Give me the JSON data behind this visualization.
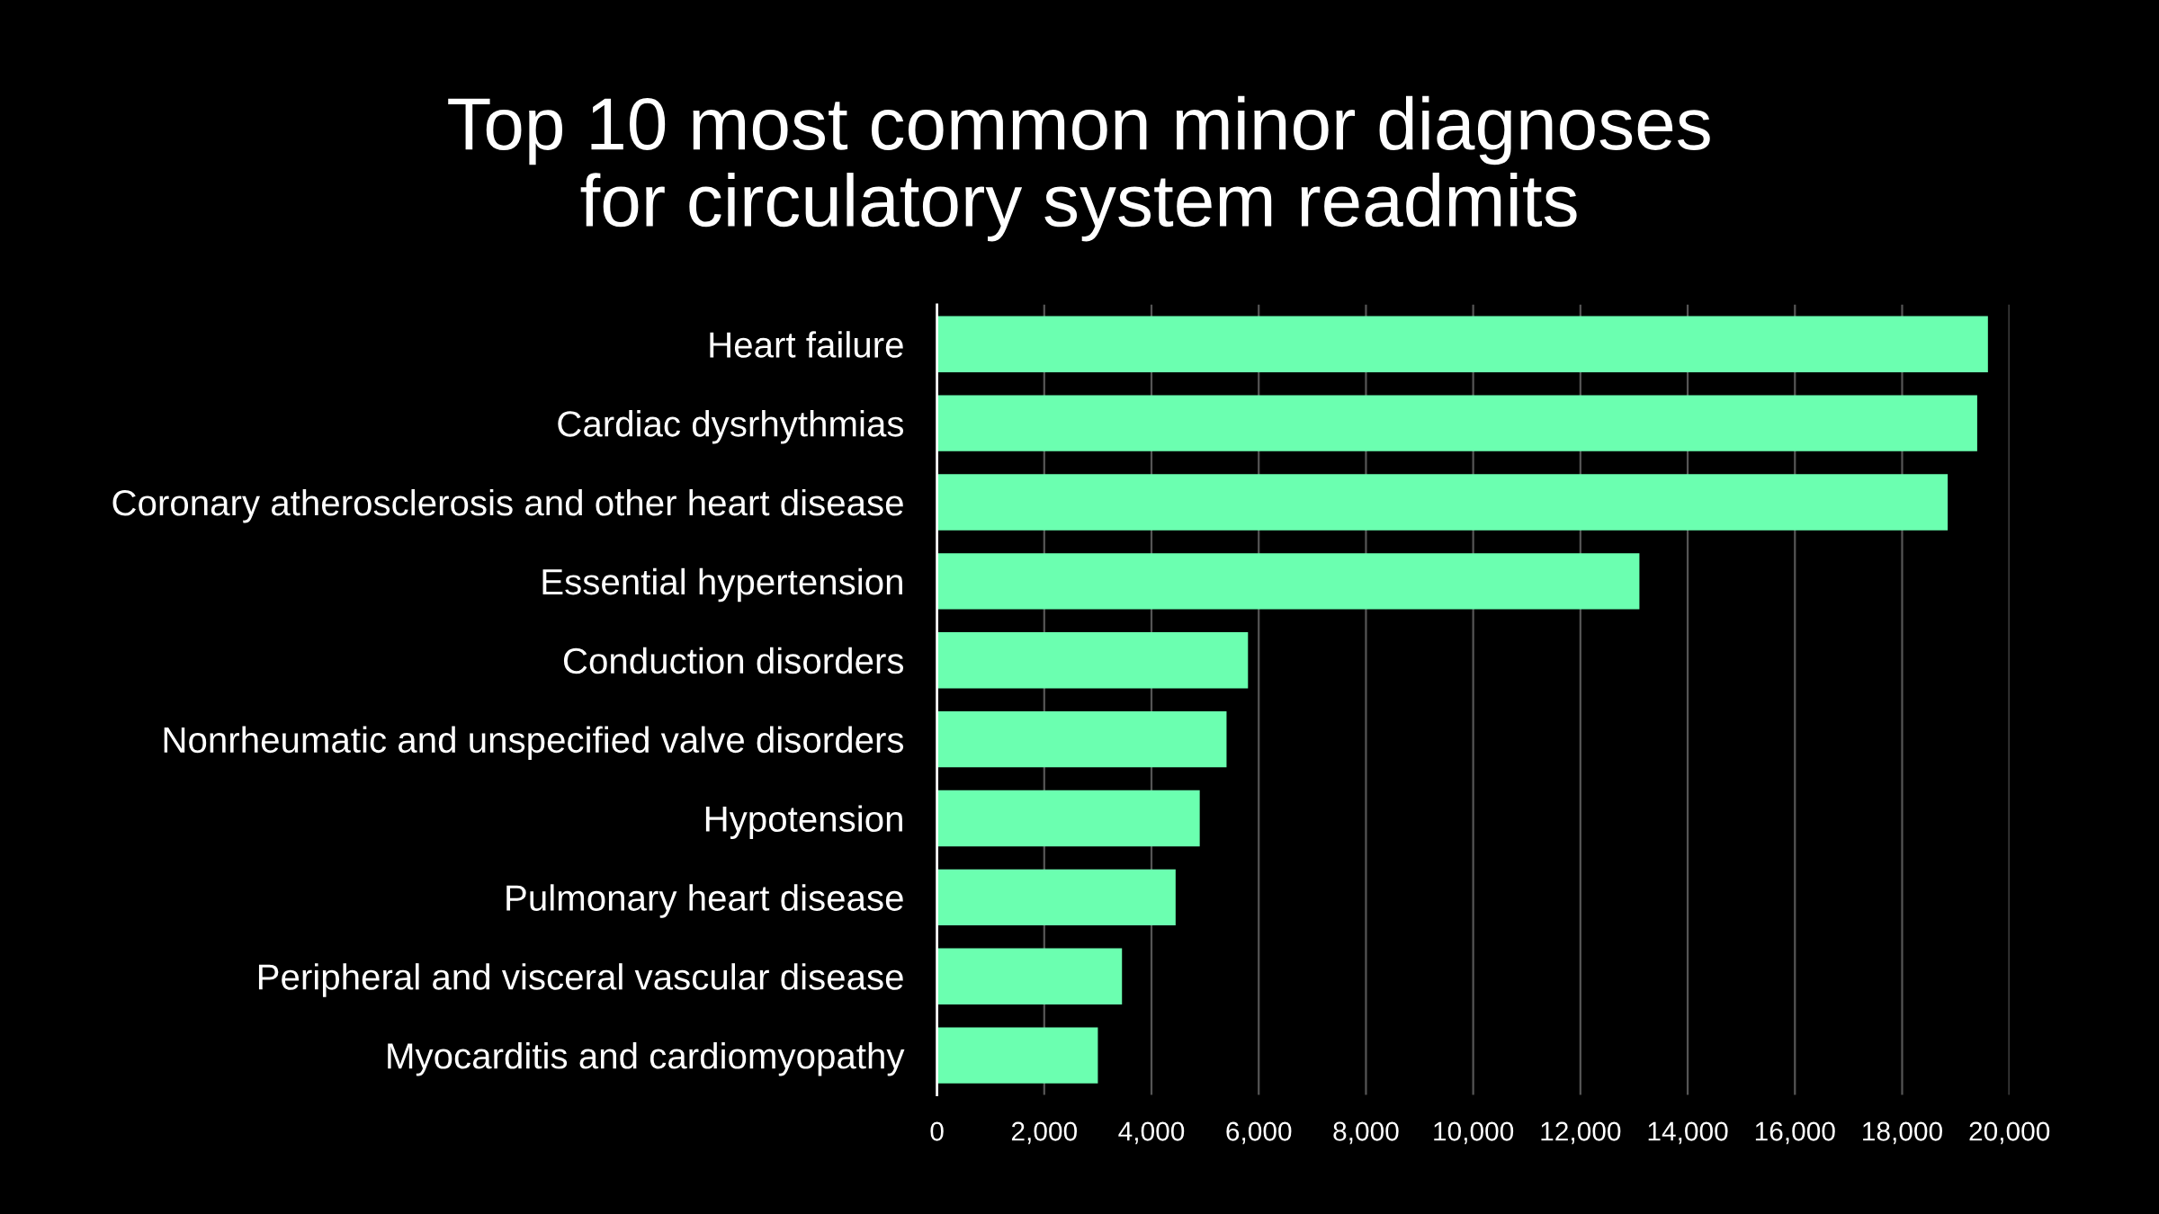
{
  "chart_data": {
    "type": "bar",
    "orientation": "horizontal",
    "title": "Top 10 most common minor diagnoses\nfor circulatory system readmits",
    "categories": [
      "Heart failure",
      "Cardiac dysrhythmias",
      "Coronary atherosclerosis and other heart disease",
      "Essential hypertension",
      "Conduction disorders",
      "Nonrheumatic and unspecified valve disorders",
      "Hypotension",
      "Pulmonary heart disease",
      "Peripheral and visceral vascular disease",
      "Myocarditis and cardiomyopathy"
    ],
    "values": [
      19600,
      19400,
      18850,
      13100,
      5800,
      5400,
      4900,
      4450,
      3450,
      3000
    ],
    "color": "#6bffb0",
    "xlim": [
      0,
      20000
    ],
    "xticks": [
      0,
      {
        "value": 2000,
        "label": "2,000"
      },
      {
        "value": 4000,
        "label": "4,000"
      },
      {
        "value": 6000,
        "label": "6,000"
      },
      {
        "value": 8000,
        "label": "8,000"
      },
      {
        "value": 10000,
        "label": "10,000"
      },
      {
        "value": 12000,
        "label": "12,000"
      },
      {
        "value": 14000,
        "label": "14,000"
      },
      {
        "value": 16000,
        "label": "16,000"
      },
      {
        "value": 18000,
        "label": "18,000"
      },
      {
        "value": 20000,
        "label": "20,000"
      }
    ],
    "grid": "x"
  }
}
